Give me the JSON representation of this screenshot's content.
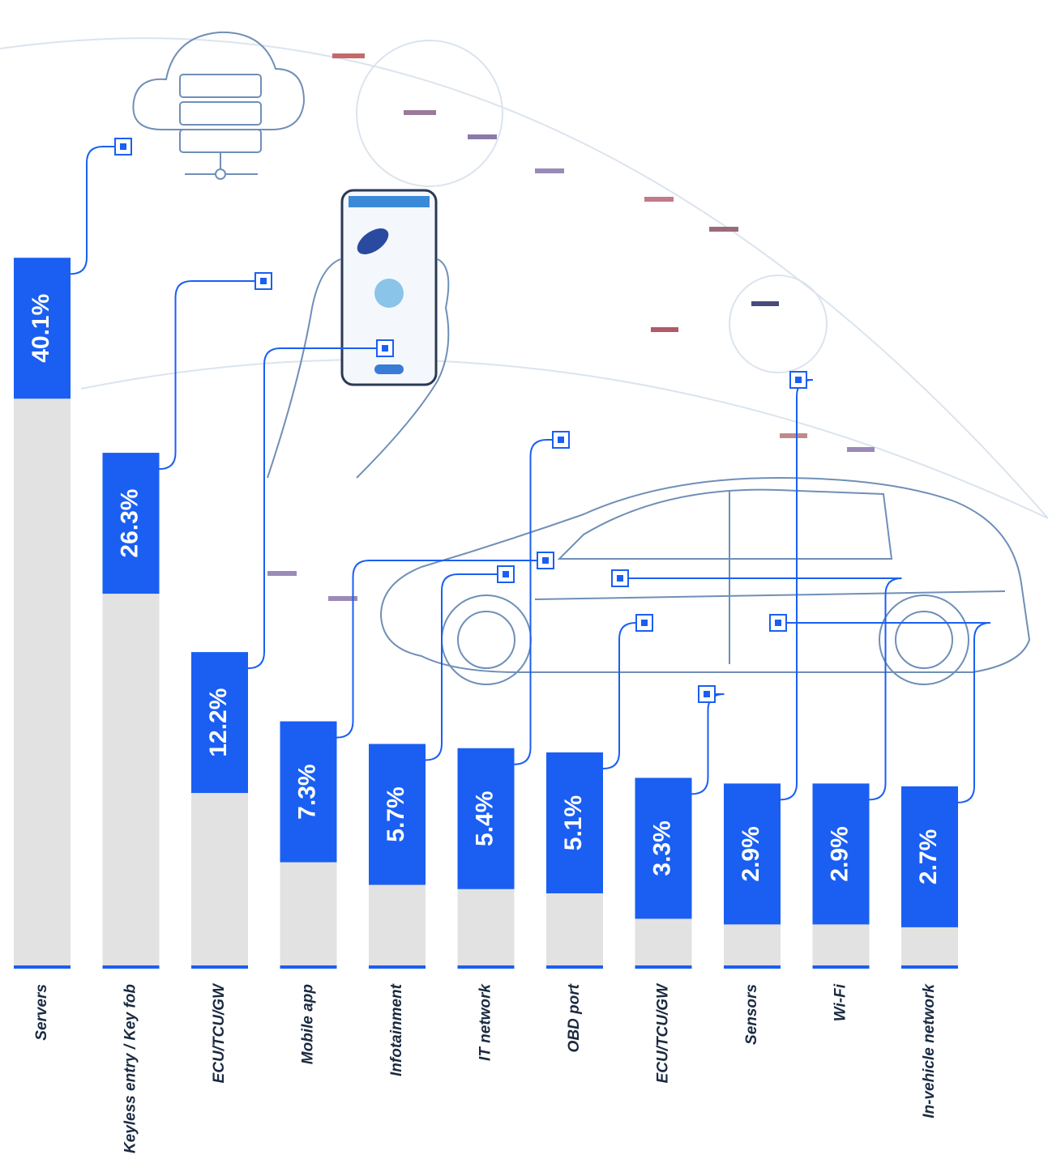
{
  "chart_data": {
    "type": "bar",
    "categories": [
      "Servers",
      "Keyless entry / Key fob",
      "ECU/TCU/GW",
      "Mobile app",
      "Infotainment",
      "IT network",
      "OBD port",
      "ECU/TCU/GW",
      "Sensors",
      "Wi-Fi",
      "In-vehicle network"
    ],
    "values": [
      40.1,
      26.3,
      12.2,
      7.3,
      5.7,
      5.4,
      5.1,
      3.3,
      2.9,
      2.9,
      2.7
    ],
    "value_labels": [
      "40.1%",
      "26.3%",
      "12.2%",
      "7.3%",
      "5.7%",
      "5.4%",
      "5.1%",
      "3.3%",
      "2.9%",
      "2.9%",
      "2.7%"
    ],
    "color": "#1a5ff2",
    "stem_color": "#e2e2e2"
  }
}
